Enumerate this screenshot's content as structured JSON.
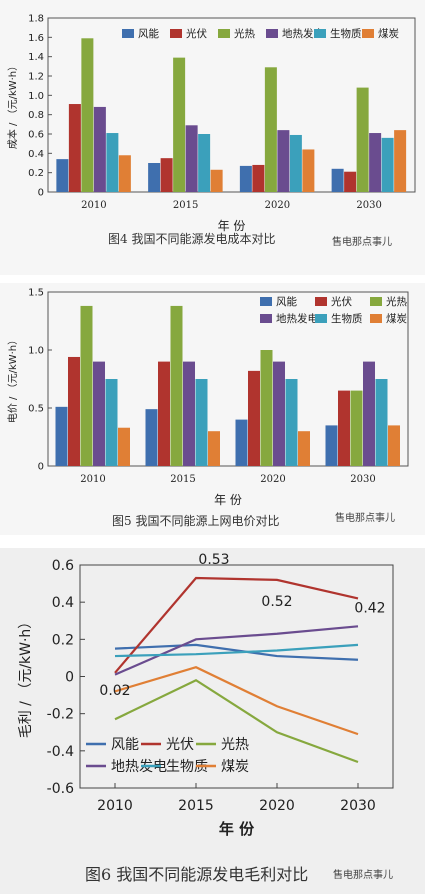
{
  "chart_data": [
    {
      "type": "bar",
      "caption": "图4  我国不同能源发电成本对比",
      "xlabel": "年 份",
      "ylabel": "成本 / （元/kW·h）",
      "ylim": [
        0,
        1.8
      ],
      "yticks": [
        "0",
        "0.2",
        "0.4",
        "0.6",
        "0.8",
        "1.0",
        "1.2",
        "1.4",
        "1.6",
        "1.8"
      ],
      "categories": [
        "2010",
        "2015",
        "2020",
        "2030"
      ],
      "legend_position": "top-right",
      "series": [
        {
          "name": "风能",
          "color": "#3f6fae",
          "values": [
            0.34,
            0.3,
            0.27,
            0.24
          ]
        },
        {
          "name": "光伏",
          "color": "#b0342e",
          "values": [
            0.91,
            0.35,
            0.28,
            0.21
          ]
        },
        {
          "name": "光热",
          "color": "#86a83e",
          "values": [
            1.59,
            1.39,
            1.29,
            1.08
          ]
        },
        {
          "name": "地热发电",
          "color": "#6a4c8f",
          "values": [
            0.88,
            0.69,
            0.64,
            0.61
          ]
        },
        {
          "name": "生物质",
          "color": "#3ba0bb",
          "values": [
            0.61,
            0.6,
            0.59,
            0.56
          ]
        },
        {
          "name": "煤炭",
          "color": "#e07f35",
          "values": [
            0.38,
            0.23,
            0.44,
            0.64
          ]
        }
      ],
      "watermark": "售电那点事儿"
    },
    {
      "type": "bar",
      "caption": "图5   我国不同能源上网电价对比",
      "xlabel": "年 份",
      "ylabel": "电价 / （元/kW·h）",
      "ylim": [
        0,
        1.5
      ],
      "yticks": [
        "0",
        "0.5",
        "1.0",
        "1.5"
      ],
      "categories": [
        "2010",
        "2015",
        "2020",
        "2030"
      ],
      "legend_position": "top-right",
      "series": [
        {
          "name": "风能",
          "color": "#3f6fae",
          "values": [
            0.51,
            0.49,
            0.4,
            0.35
          ]
        },
        {
          "name": "光伏",
          "color": "#b0342e",
          "values": [
            0.94,
            0.9,
            0.82,
            0.65
          ]
        },
        {
          "name": "光热",
          "color": "#86a83e",
          "values": [
            1.38,
            1.38,
            1.0,
            0.65
          ]
        },
        {
          "name": "地热发电",
          "color": "#6a4c8f",
          "values": [
            0.9,
            0.9,
            0.9,
            0.9
          ]
        },
        {
          "name": "生物质",
          "color": "#3ba0bb",
          "values": [
            0.75,
            0.75,
            0.75,
            0.75
          ]
        },
        {
          "name": "煤炭",
          "color": "#e07f35",
          "values": [
            0.33,
            0.3,
            0.3,
            0.35
          ]
        }
      ],
      "watermark": "售电那点事儿"
    },
    {
      "type": "line",
      "caption": "图6   我国不同能源发电毛利对比",
      "xlabel": "年 份",
      "ylabel": "毛利 / （元/kW·h）",
      "ylim": [
        -0.6,
        0.6
      ],
      "yticks": [
        "-0.6",
        "-0.4",
        "-0.2",
        "0",
        "0.2",
        "0.4",
        "0.6"
      ],
      "x": [
        "2010",
        "2015",
        "2020",
        "2030"
      ],
      "legend_position": "bottom-left",
      "series": [
        {
          "name": "风能",
          "color": "#3f6fae",
          "values": [
            0.15,
            0.17,
            0.11,
            0.09
          ]
        },
        {
          "name": "光伏",
          "color": "#b0342e",
          "values": [
            0.02,
            0.53,
            0.52,
            0.42
          ]
        },
        {
          "name": "光热",
          "color": "#86a83e",
          "values": [
            -0.23,
            -0.02,
            -0.3,
            -0.46
          ]
        },
        {
          "name": "地热发电",
          "color": "#6a4c8f",
          "values": [
            0.01,
            0.2,
            0.23,
            0.27
          ]
        },
        {
          "name": "生物质",
          "color": "#3ba0bb",
          "values": [
            0.11,
            0.12,
            0.14,
            0.17
          ]
        },
        {
          "name": "煤炭",
          "color": "#e07f35",
          "values": [
            -0.08,
            0.05,
            -0.16,
            -0.31
          ]
        }
      ],
      "annotations": [
        {
          "text": "0.02",
          "series": "光伏",
          "x": "2010"
        },
        {
          "text": "0.53",
          "series": "光伏",
          "x": "2015"
        },
        {
          "text": "0.52",
          "series": "光伏",
          "x": "2020"
        },
        {
          "text": "0.42",
          "series": "光伏",
          "x": "2030"
        }
      ],
      "watermark": "售电那点事儿"
    }
  ]
}
